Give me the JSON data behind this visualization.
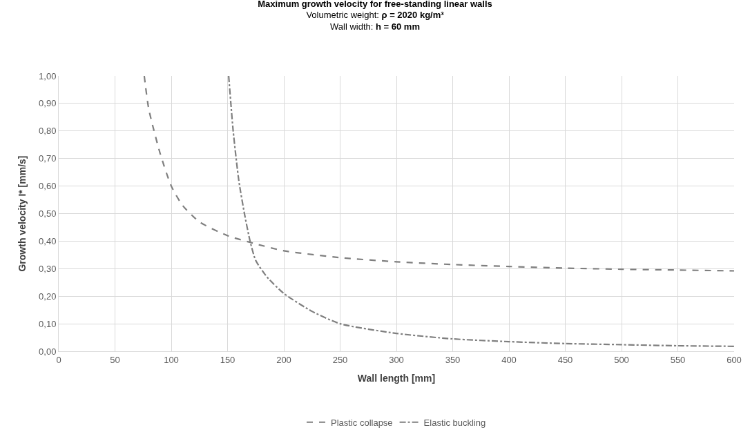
{
  "chart_data": {
    "type": "line",
    "title": "Maximum growth velocity for free-standing linear walls",
    "subtitle": "Volumetric weight: ρ = 2020 kg/m³\nWall width: h = 60 mm",
    "xlabel": "Wall length [mm]",
    "ylabel": "Growth velocity I* [mm/s]",
    "series": [
      {
        "name": "Plastic collapse",
        "color": "#7f7f7f",
        "line_style": "dashed",
        "x": [
          76,
          80,
          90,
          100,
          110,
          125,
          150,
          175,
          200,
          250,
          300,
          350,
          400,
          450,
          500,
          550,
          600
        ],
        "values": [
          1.0,
          0.88,
          0.72,
          0.6,
          0.53,
          0.47,
          0.42,
          0.39,
          0.365,
          0.34,
          0.325,
          0.315,
          0.308,
          0.302,
          0.298,
          0.295,
          0.292
        ]
      },
      {
        "name": "Elastic buckling",
        "color": "#7f7f7f",
        "line_style": "dashdot",
        "x": [
          151,
          155,
          160,
          165,
          170,
          175,
          185,
          200,
          225,
          250,
          300,
          350,
          400,
          450,
          500,
          550,
          600
        ],
        "values": [
          1.0,
          0.8,
          0.62,
          0.5,
          0.4,
          0.33,
          0.27,
          0.21,
          0.145,
          0.1,
          0.065,
          0.045,
          0.035,
          0.028,
          0.024,
          0.02,
          0.018
        ]
      }
    ],
    "xlim": [
      0,
      600
    ],
    "xticks": [
      0,
      50,
      100,
      150,
      200,
      250,
      300,
      350,
      400,
      450,
      500,
      550,
      600
    ],
    "ylim": [
      0,
      1.0
    ],
    "yticks": [
      {
        "value": 0,
        "label": "0,00"
      },
      {
        "value": 0.1,
        "label": "0,10"
      },
      {
        "value": 0.2,
        "label": "0,20"
      },
      {
        "value": 0.3,
        "label": "0,30"
      },
      {
        "value": 0.4,
        "label": "0,40"
      },
      {
        "value": 0.5,
        "label": "0,50"
      },
      {
        "value": 0.6,
        "label": "0,60"
      },
      {
        "value": 0.7,
        "label": "0,70"
      },
      {
        "value": 0.8,
        "label": "0,80"
      },
      {
        "value": 0.9,
        "label": "0,90"
      },
      {
        "value": 1.0,
        "label": "1,00"
      }
    ],
    "grid": true,
    "legend": "bottom",
    "marker": "none"
  }
}
